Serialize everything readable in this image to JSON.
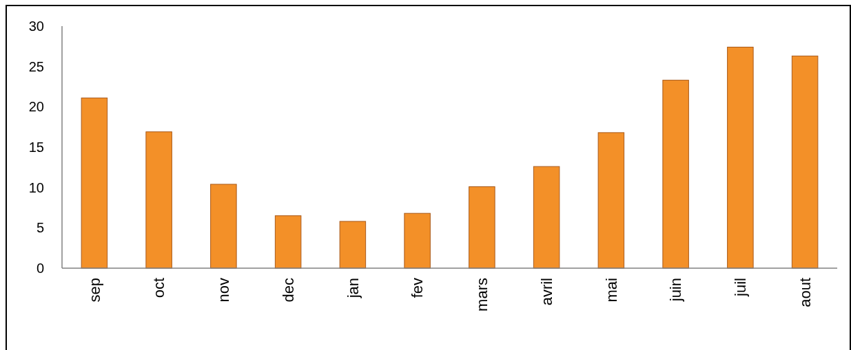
{
  "chart_data": {
    "type": "bar",
    "categories": [
      "sep",
      "oct",
      "nov",
      "dec",
      "jan",
      "fev",
      "mars",
      "avril",
      "mai",
      "juin",
      "juil",
      "aout"
    ],
    "values": [
      21.1,
      16.9,
      10.4,
      6.5,
      5.8,
      6.8,
      10.1,
      12.6,
      16.8,
      23.3,
      27.4,
      26.3
    ],
    "color": "#f39028",
    "ylim": [
      0,
      30
    ],
    "yticks": [
      0,
      5,
      10,
      15,
      20,
      25,
      30
    ],
    "grid": false
  }
}
